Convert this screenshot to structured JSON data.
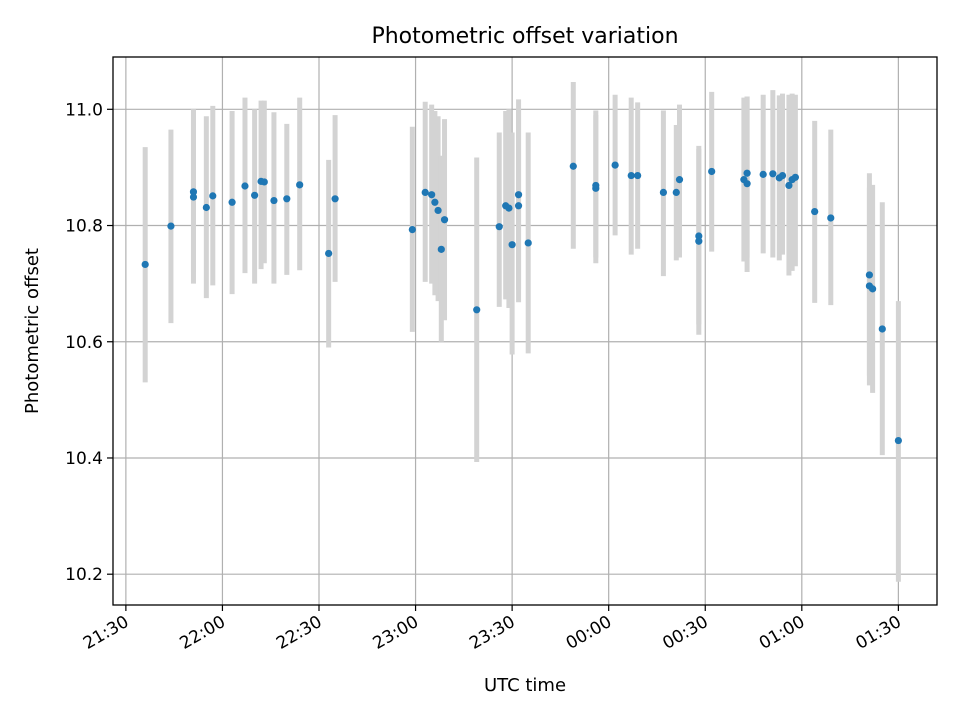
{
  "chart_data": {
    "type": "scatter",
    "title": "Photometric offset variation",
    "xlabel": "UTC time",
    "ylabel": "Photometric offset",
    "x_ticks": [
      "21:30",
      "22:00",
      "22:30",
      "23:00",
      "23:30",
      "00:00",
      "00:30",
      "01:00",
      "01:30"
    ],
    "y_ticks": [
      "10.2",
      "10.4",
      "10.6",
      "10.8",
      "11.0"
    ],
    "xlim": [
      "21:26",
      "01:42"
    ],
    "ylim": [
      10.147,
      11.09
    ],
    "grid": true,
    "marker_color": "#1f77b4",
    "errorbar_color": "#d3d3d3",
    "x": [
      "21:36",
      "21:44",
      "21:51",
      "21:51",
      "21:55",
      "21:57",
      "22:03",
      "22:07",
      "22:10",
      "22:12",
      "22:13",
      "22:16",
      "22:20",
      "22:24",
      "22:33",
      "22:35",
      "22:59",
      "23:03",
      "23:05",
      "23:06",
      "23:07",
      "23:08",
      "23:09",
      "23:19",
      "23:26",
      "23:28",
      "23:29",
      "23:30",
      "23:32",
      "23:32",
      "23:35",
      "23:49",
      "23:56",
      "23:56",
      "00:02",
      "00:07",
      "00:09",
      "00:17",
      "00:21",
      "00:22",
      "00:28",
      "00:28",
      "00:32",
      "00:42",
      "00:43",
      "00:43",
      "00:48",
      "00:51",
      "00:53",
      "00:54",
      "00:56",
      "00:57",
      "00:58",
      "01:04",
      "01:09",
      "01:21",
      "01:21",
      "01:22",
      "01:25",
      "01:30"
    ],
    "values": [
      10.733,
      10.799,
      10.849,
      10.858,
      10.831,
      10.851,
      10.84,
      10.868,
      10.852,
      10.876,
      10.875,
      10.843,
      10.846,
      10.87,
      10.752,
      10.846,
      10.793,
      10.857,
      10.853,
      10.84,
      10.826,
      10.759,
      10.81,
      10.655,
      10.798,
      10.834,
      10.83,
      10.767,
      10.834,
      10.853,
      10.77,
      10.902,
      10.864,
      10.869,
      10.904,
      10.886,
      10.886,
      10.857,
      10.857,
      10.879,
      10.782,
      10.773,
      10.893,
      10.879,
      10.89,
      10.872,
      10.888,
      10.889,
      10.882,
      10.886,
      10.869,
      10.879,
      10.883,
      10.824,
      10.813,
      10.715,
      10.696,
      10.691,
      10.622,
      10.43
    ],
    "err_low": [
      10.53,
      10.632,
      10.7,
      10.72,
      10.675,
      10.697,
      10.682,
      10.718,
      10.7,
      10.725,
      10.735,
      10.7,
      10.715,
      10.723,
      10.59,
      10.703,
      10.617,
      10.703,
      10.7,
      10.68,
      10.67,
      10.6,
      10.637,
      10.393,
      10.66,
      10.673,
      10.658,
      10.578,
      10.668,
      10.69,
      10.58,
      10.76,
      10.735,
      10.745,
      10.783,
      10.75,
      10.76,
      10.713,
      10.74,
      10.745,
      10.63,
      10.612,
      10.755,
      10.738,
      10.745,
      10.72,
      10.752,
      10.745,
      10.74,
      10.75,
      10.714,
      10.722,
      10.73,
      10.667,
      10.663,
      10.542,
      10.525,
      10.512,
      10.405,
      10.187
    ],
    "err_high": [
      10.935,
      10.965,
      11.0,
      11.0,
      10.988,
      11.006,
      10.997,
      11.02,
      11.0,
      11.015,
      11.015,
      10.995,
      10.975,
      11.02,
      10.913,
      10.99,
      10.97,
      11.013,
      11.008,
      10.997,
      10.988,
      10.92,
      10.983,
      10.917,
      10.96,
      10.997,
      11.0,
      10.96,
      11.002,
      11.017,
      10.96,
      11.047,
      10.998,
      10.99,
      11.025,
      11.02,
      11.012,
      10.998,
      10.973,
      11.008,
      10.937,
      10.932,
      11.03,
      11.02,
      11.022,
      11.022,
      11.025,
      11.033,
      11.024,
      11.027,
      11.025,
      11.027,
      11.025,
      10.98,
      10.965,
      10.89,
      10.865,
      10.87,
      10.84,
      10.67
    ]
  }
}
